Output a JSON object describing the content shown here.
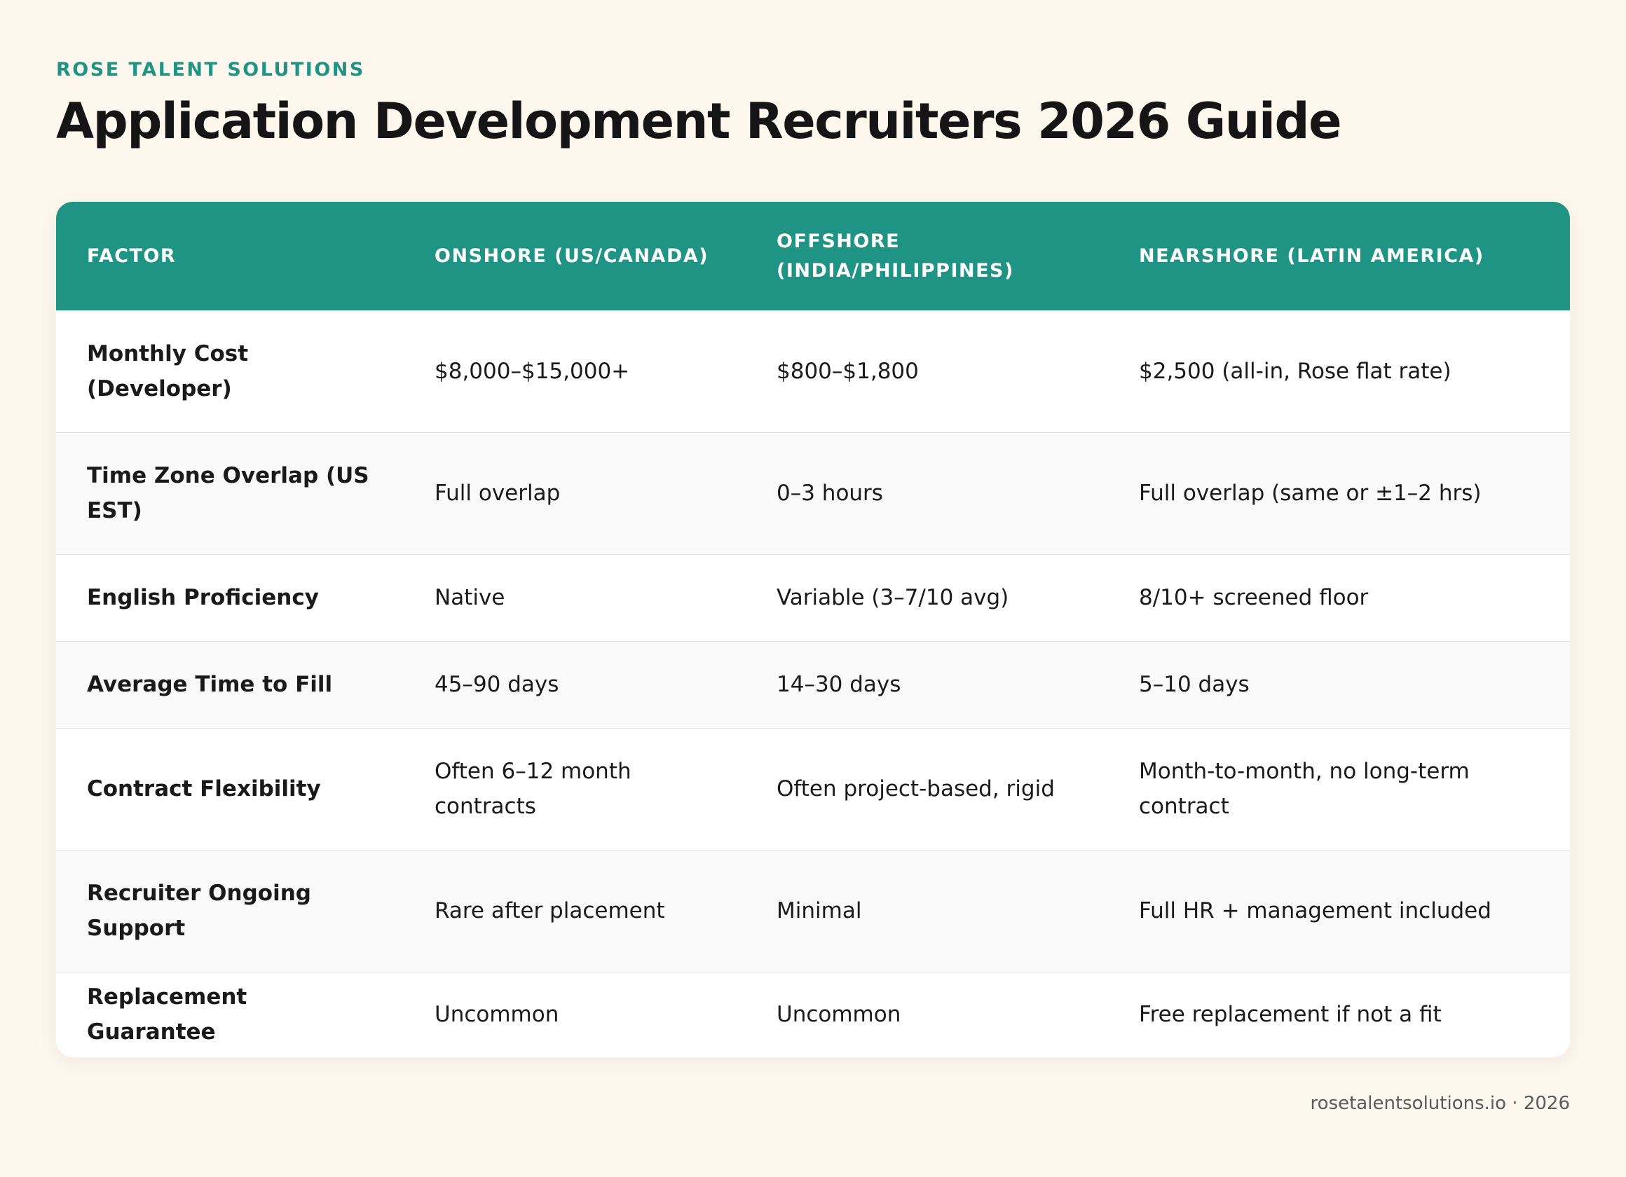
{
  "brand": "ROSE TALENT SOLUTIONS",
  "title": "Application Development Recruiters 2026 Guide",
  "table": {
    "headers": [
      "FACTOR",
      "ONSHORE (US/CANADA)",
      "OFFSHORE (INDIA/PHILIPPINES)",
      "NEARSHORE (LATIN AMERICA)"
    ],
    "rows": [
      [
        "Monthly Cost (Developer)",
        "$8,000–$15,000+",
        "$800–$1,800",
        "$2,500 (all-in, Rose flat rate)"
      ],
      [
        "Time Zone Overlap (US EST)",
        "Full overlap",
        "0–3 hours",
        "Full overlap (same or ±1–2 hrs)"
      ],
      [
        "English Proficiency",
        "Native",
        "Variable (3–7/10 avg)",
        "8/10+ screened floor"
      ],
      [
        "Average Time to Fill",
        "45–90 days",
        "14–30 days",
        "5–10 days"
      ],
      [
        "Contract Flexibility",
        "Often 6–12 month contracts",
        "Often project-based, rigid",
        "Month-to-month, no long-term contract"
      ],
      [
        "Recruiter Ongoing Support",
        "Rare after placement",
        "Minimal",
        "Full HR + management included"
      ],
      [
        "Replacement Guarantee",
        "Uncommon",
        "Uncommon",
        "Free replacement if not a fit"
      ]
    ]
  },
  "footer": "rosetalentsolutions.io · 2026",
  "colors": {
    "accent": "#1f9485",
    "background": "#fdf7ee",
    "row_alt": "#f9f9f9"
  }
}
